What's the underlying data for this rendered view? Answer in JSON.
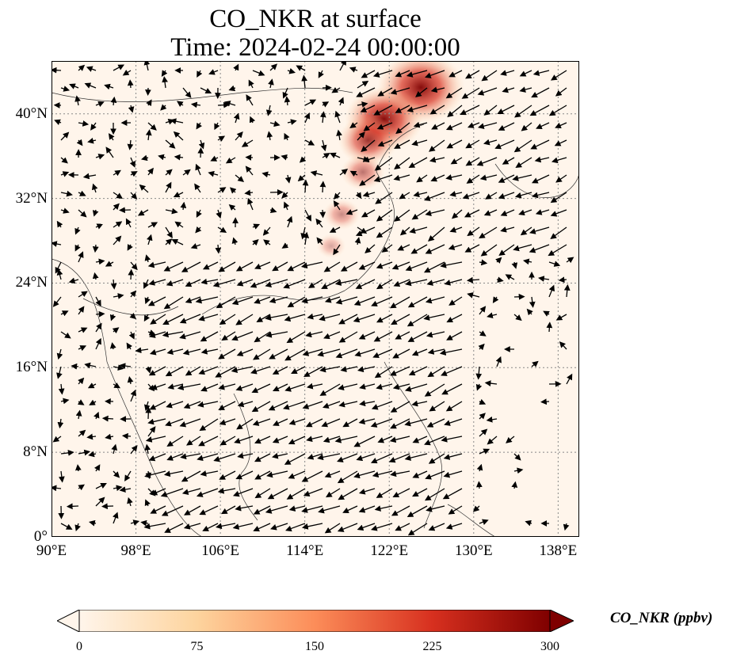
{
  "title": {
    "line1": "CO_NKR at surface",
    "line2": "Time: 2024-02-24 00:00:00"
  },
  "map": {
    "projection": "PlateCarree",
    "lon_range": [
      90,
      140
    ],
    "lat_range": [
      0,
      45
    ],
    "gridlines": "dotted gray",
    "lat_ticks": [
      {
        "value": 0,
        "label": "0°"
      },
      {
        "value": 8,
        "label": "8°N"
      },
      {
        "value": 16,
        "label": "16°N"
      },
      {
        "value": 24,
        "label": "24°N"
      },
      {
        "value": 32,
        "label": "32°N"
      },
      {
        "value": 40,
        "label": "40°N"
      }
    ],
    "lon_ticks": [
      {
        "value": 90,
        "label": "90°E"
      },
      {
        "value": 98,
        "label": "98°E"
      },
      {
        "value": 106,
        "label": "106°E"
      },
      {
        "value": 114,
        "label": "114°E"
      },
      {
        "value": 122,
        "label": "122°E"
      },
      {
        "value": 130,
        "label": "130°E"
      },
      {
        "value": 138,
        "label": "138°E"
      }
    ],
    "background_color": "#fff5eb",
    "overlay": "wind vectors (black arrows)",
    "concentration_plumes": [
      {
        "lon": 125.0,
        "lat": 42.5,
        "value": 300
      },
      {
        "lon": 121.5,
        "lat": 39.5,
        "value": 260
      },
      {
        "lon": 120.0,
        "lat": 37.5,
        "value": 180
      },
      {
        "lon": 119.5,
        "lat": 34.5,
        "value": 110
      },
      {
        "lon": 117.5,
        "lat": 30.5,
        "value": 80
      },
      {
        "lon": 116.5,
        "lat": 27.5,
        "value": 45
      }
    ]
  },
  "colorbar": {
    "title": "CO_NKR (ppbv)",
    "colormap": "OrRd",
    "range": [
      0,
      300
    ],
    "extend": "both",
    "ticks": [
      "0",
      "75",
      "150",
      "225",
      "300"
    ],
    "colors": [
      "#fff5eb",
      "#fdd49e",
      "#fc8d59",
      "#d7301f",
      "#7f0000"
    ]
  }
}
